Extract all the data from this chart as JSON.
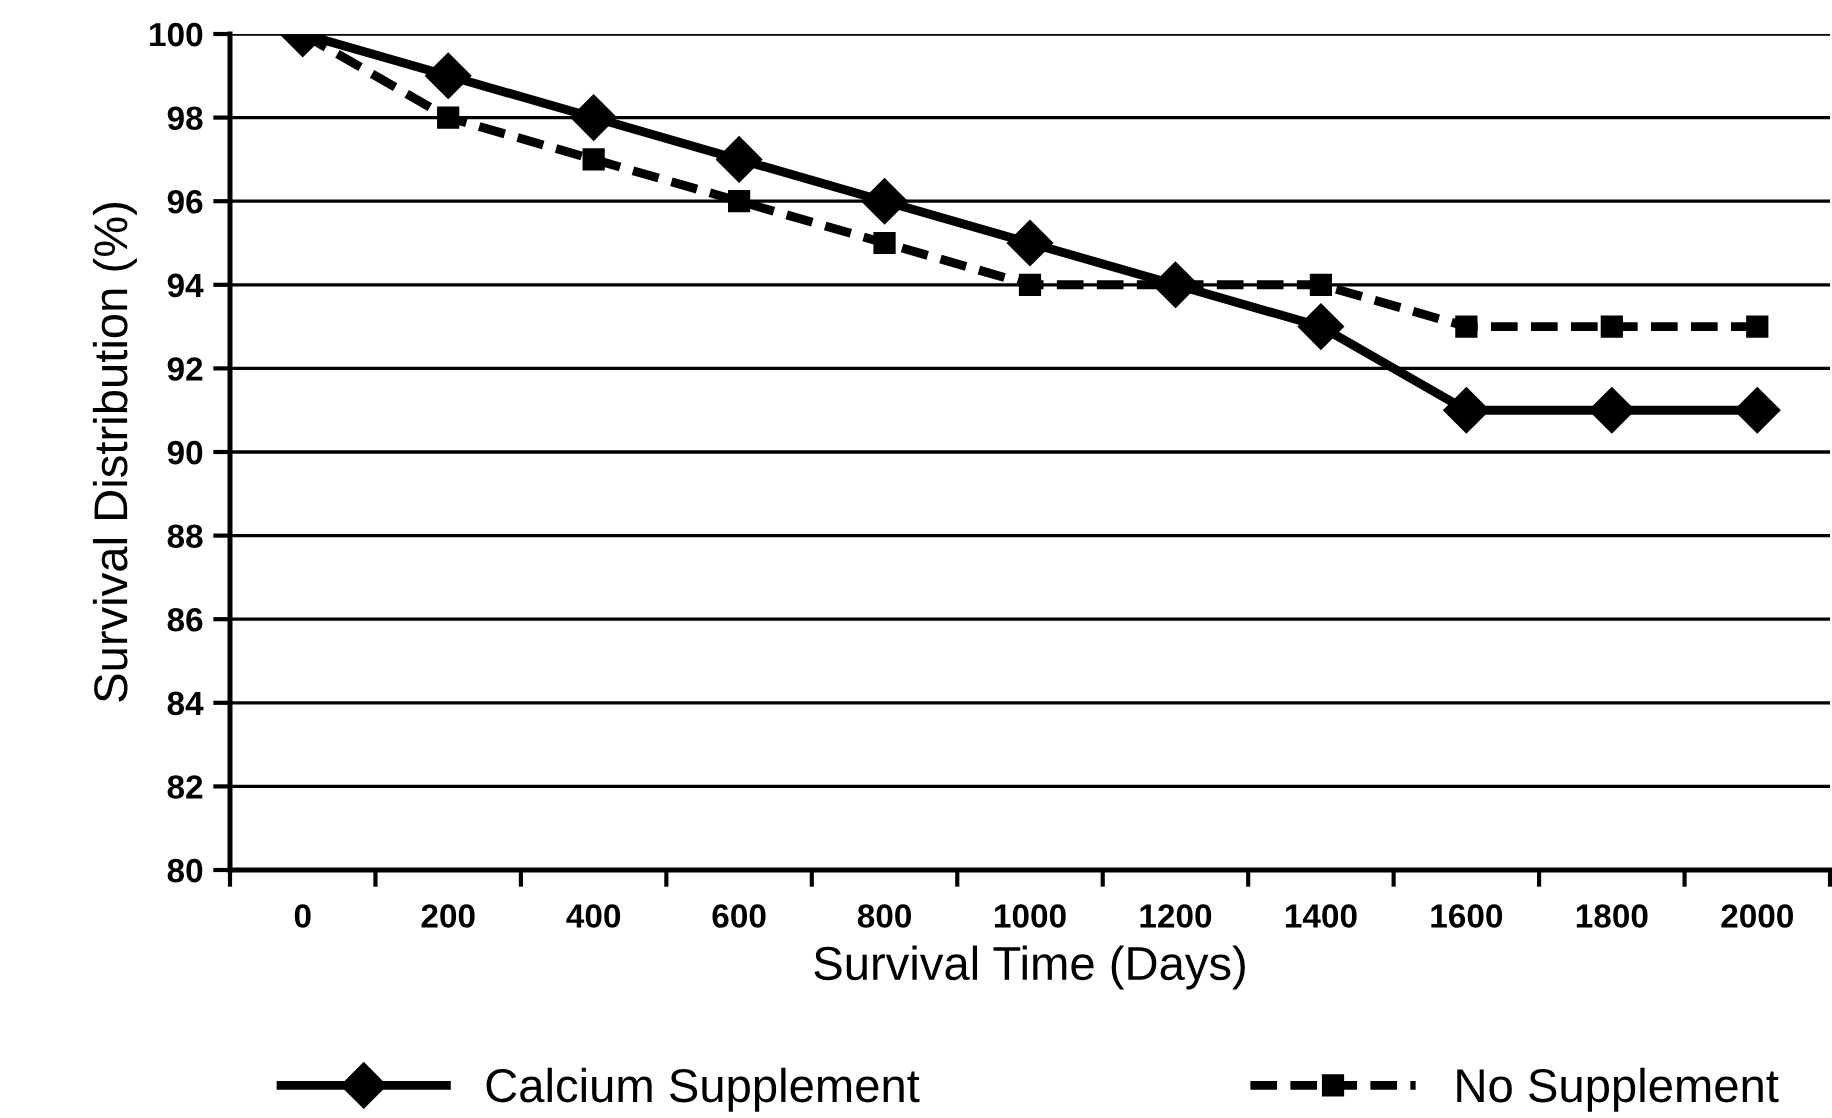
{
  "chart_data": {
    "type": "line",
    "xlabel": "Survival Time (Days)",
    "ylabel": "Survival Distribution (%)",
    "categories": [
      "0",
      "200",
      "400",
      "600",
      "800",
      "1000",
      "1200",
      "1400",
      "1600",
      "1800",
      "2000"
    ],
    "series": [
      {
        "name": "Calcium Supplement",
        "color": "#000000",
        "marker": "diamond",
        "line_style": "solid",
        "values": [
          100,
          99,
          98,
          97,
          96,
          95,
          94,
          93,
          91,
          91,
          91
        ]
      },
      {
        "name": "No Supplement",
        "color": "#000000",
        "marker": "square",
        "line_style": "dashed",
        "values": [
          100,
          98,
          97,
          96,
          95,
          94,
          94,
          94,
          93,
          93,
          93
        ]
      }
    ],
    "ylim": [
      80,
      100
    ],
    "yticks": [
      80,
      82,
      84,
      86,
      88,
      90,
      92,
      94,
      96,
      98,
      100
    ],
    "grid": "y",
    "legend": "bottom"
  }
}
